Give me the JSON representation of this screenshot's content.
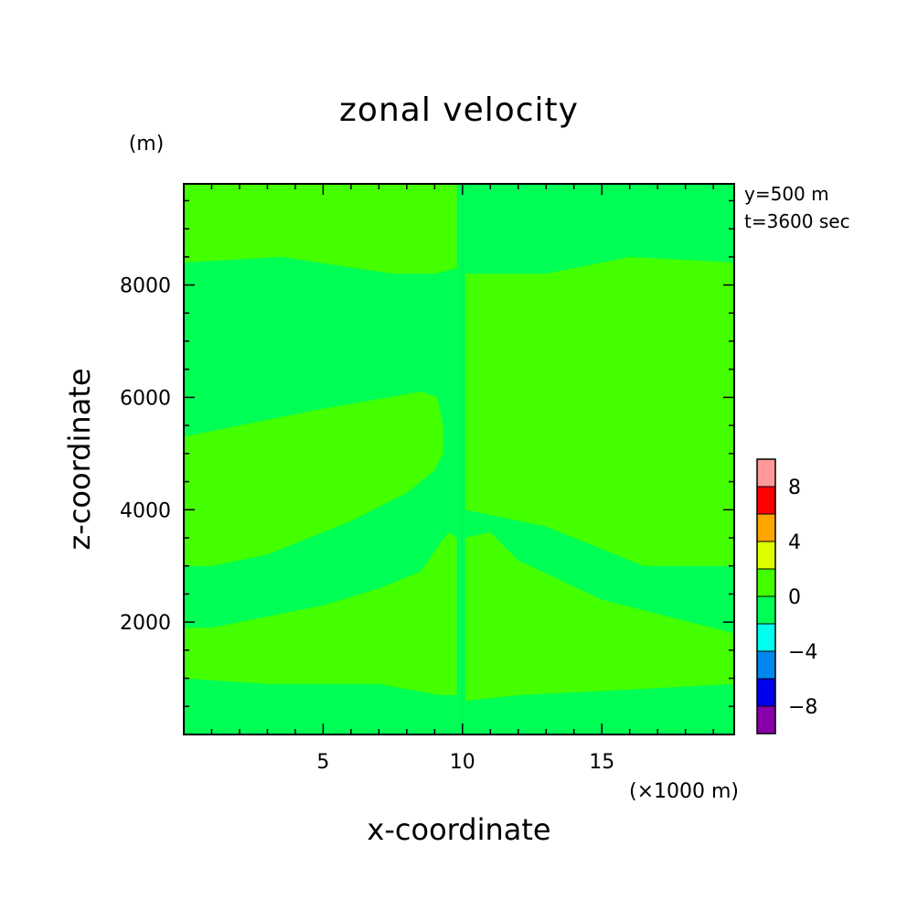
{
  "chart_data": {
    "type": "heatmap",
    "title": "zonal velocity",
    "xlabel": "x-coordinate",
    "ylabel": "z-coordinate",
    "x_unit": "(×1000 m)",
    "y_unit": "(m)",
    "xlim": [
      0,
      19.75
    ],
    "ylim": [
      0,
      9800
    ],
    "x_ticks": [
      5,
      10,
      15
    ],
    "y_ticks": [
      2000,
      4000,
      6000,
      8000
    ],
    "x_tick_labels": [
      "5",
      "10",
      "15"
    ],
    "y_tick_labels": [
      "2000",
      "4000",
      "6000",
      "8000"
    ],
    "annotations": [
      "y=500 m",
      "t=3600 sec"
    ],
    "colorbar": {
      "levels": [
        -10,
        -8,
        -6,
        -4,
        -2,
        0,
        2,
        4,
        6,
        8,
        10
      ],
      "colors": [
        "#8800aa",
        "#0000ee",
        "#0088ee",
        "#00ffee",
        "#00ff55",
        "#44ff00",
        "#ddff00",
        "#ffa500",
        "#ff0000",
        "#ff9999"
      ],
      "tick_values": [
        -8,
        -4,
        0,
        4,
        8
      ],
      "tick_labels": [
        "−8",
        "−4",
        "0",
        "4",
        "8"
      ]
    },
    "background_color": "#00ff55",
    "fill_color": "#44ff00",
    "regions": [
      {
        "level": "0 to 2",
        "x": [
          0,
          9.8,
          9.8,
          9,
          7.5,
          3.5,
          0
        ],
        "z": [
          9800,
          9800,
          8300,
          8200,
          8200,
          8500,
          8400
        ]
      },
      {
        "level": "0 to 2",
        "x": [
          0,
          2,
          5,
          8.5,
          9.1,
          9.3,
          9.3,
          9,
          8,
          6,
          3,
          1,
          0
        ],
        "z": [
          5300,
          5500,
          5800,
          6100,
          6000,
          5500,
          5000,
          4700,
          4300,
          3800,
          3200,
          3000,
          3000
        ]
      },
      {
        "level": "0 to 2",
        "x": [
          0,
          1,
          3,
          5,
          7,
          8.5,
          9.2,
          9.5,
          9.8,
          9.8,
          9.2,
          7,
          3,
          0
        ],
        "z": [
          1900,
          1900,
          2100,
          2300,
          2600,
          2900,
          3400,
          3600,
          3500,
          700,
          700,
          900,
          900,
          1000
        ]
      },
      {
        "level": "0 to 2",
        "x": [
          10.1,
          11,
          13,
          16,
          19.75,
          19.75,
          16.5,
          13,
          10.1
        ],
        "z": [
          8200,
          8200,
          8200,
          8500,
          8400,
          3000,
          3000,
          3700,
          4000
        ]
      },
      {
        "level": "0 to 2",
        "x": [
          10.1,
          11,
          12,
          15,
          19.75,
          19.75,
          16,
          12,
          10.1
        ],
        "z": [
          3500,
          3600,
          3100,
          2400,
          1800,
          900,
          800,
          700,
          600
        ]
      }
    ],
    "boundary_points": [
      {
        "x": 10.0,
        "z": 9800
      },
      {
        "x": 10.0,
        "z": 0
      }
    ]
  }
}
